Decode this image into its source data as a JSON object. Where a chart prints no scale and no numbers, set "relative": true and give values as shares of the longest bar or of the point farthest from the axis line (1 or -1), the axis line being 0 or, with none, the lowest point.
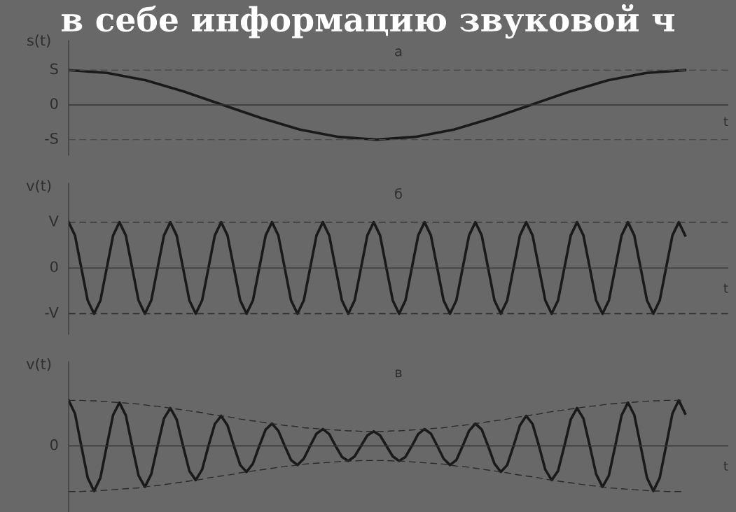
{
  "chart_data": [
    {
      "type": "line",
      "title": "а",
      "ylabel": "s(t)",
      "xlabel": "t",
      "annotations": [
        "в себе информацию звуковой ч"
      ],
      "relative": true,
      "categories": [
        null,
        null,
        null,
        null,
        null,
        null,
        null,
        null,
        null,
        null,
        null,
        null,
        null,
        null,
        null,
        null,
        null
      ],
      "series": [
        {
          "color": "#1a1a1a",
          "values": [
            1,
            0.92,
            0.71,
            0.38,
            0,
            -0.38,
            -0.71,
            -0.92,
            -1,
            -0.92,
            -0.71,
            -0.38,
            0,
            0.38,
            0.71,
            0.92,
            1
          ]
        }
      ],
      "ref_lines": [
        {
          "axis": "y",
          "value": 1,
          "label": "S",
          "line_style": "dashed",
          "color": "#4a4a4a"
        },
        {
          "axis": "y",
          "value": 0,
          "label": "0",
          "line_style": "solid",
          "color": "#333333"
        },
        {
          "axis": "y",
          "value": -1,
          "label": "-S",
          "line_style": "dashed",
          "color": "#4a4a4a"
        }
      ]
    },
    {
      "type": "line",
      "title": "б",
      "ylabel": "v(t)",
      "xlabel": "t",
      "relative": true,
      "categories": [
        null,
        null,
        null,
        null,
        null,
        null,
        null,
        null,
        null,
        null,
        null,
        null,
        null,
        null,
        null,
        null,
        null,
        null,
        null,
        null,
        null,
        null,
        null,
        null,
        null,
        null,
        null,
        null,
        null,
        null,
        null,
        null,
        null,
        null,
        null,
        null,
        null,
        null,
        null,
        null,
        null,
        null,
        null,
        null,
        null,
        null,
        null,
        null,
        null,
        null,
        null,
        null,
        null,
        null,
        null,
        null,
        null,
        null,
        null,
        null,
        null,
        null,
        null,
        null,
        null,
        null,
        null,
        null,
        null,
        null,
        null,
        null,
        null,
        null,
        null,
        null,
        null,
        null,
        null,
        null,
        null,
        null,
        null,
        null,
        null,
        null,
        null,
        null,
        null,
        null,
        null,
        null,
        null,
        null,
        null,
        null,
        null,
        null
      ],
      "series": [
        {
          "color": "#1a1a1a",
          "values": [
            1,
            0.71,
            0,
            -0.71,
            -1,
            -0.71,
            0,
            0.71,
            1,
            0.71,
            0,
            -0.71,
            -1,
            -0.71,
            0,
            0.71,
            1,
            0.71,
            0,
            -0.71,
            -1,
            -0.71,
            0,
            0.71,
            1,
            0.71,
            0,
            -0.71,
            -1,
            -0.71,
            0,
            0.71,
            1,
            0.71,
            0,
            -0.71,
            -1,
            -0.71,
            0,
            0.71,
            1,
            0.71,
            0,
            -0.71,
            -1,
            -0.71,
            0,
            0.71,
            1,
            0.71,
            0,
            -0.71,
            -1,
            -0.71,
            0,
            0.71,
            1,
            0.71,
            0,
            -0.71,
            -1,
            -0.71,
            0,
            0.71,
            1,
            0.71,
            0,
            -0.71,
            -1,
            -0.71,
            0,
            0.71,
            1,
            0.71,
            0,
            -0.71,
            -1,
            -0.71,
            0,
            0.71,
            1,
            0.71,
            0,
            -0.71,
            -1,
            -0.71,
            0,
            0.71,
            1,
            0.71,
            0,
            -0.71,
            -1,
            -0.71,
            0,
            0.71,
            1,
            0.71
          ]
        }
      ],
      "ref_lines": [
        {
          "axis": "y",
          "value": 1,
          "label": "V",
          "line_style": "dashed",
          "color": "#2a2a2a"
        },
        {
          "axis": "y",
          "value": 0,
          "label": "0",
          "line_style": "solid",
          "color": "#333333"
        },
        {
          "axis": "y",
          "value": -1,
          "label": "-V",
          "line_style": "dashed",
          "color": "#2a2a2a"
        }
      ]
    },
    {
      "type": "line",
      "title": "в",
      "ylabel": "v(t)",
      "xlabel": "t",
      "relative": true,
      "ref_lines": [
        {
          "axis": "y",
          "value": 0,
          "label": "0",
          "line_style": "solid",
          "color": "#333333"
        }
      ],
      "categories": [
        null,
        null,
        null,
        null,
        null,
        null,
        null,
        null,
        null,
        null,
        null,
        null,
        null,
        null,
        null,
        null,
        null,
        null,
        null,
        null,
        null,
        null,
        null,
        null,
        null,
        null,
        null,
        null,
        null,
        null,
        null,
        null,
        null,
        null,
        null,
        null,
        null,
        null,
        null,
        null,
        null,
        null,
        null,
        null,
        null,
        null,
        null,
        null,
        null,
        null,
        null,
        null,
        null,
        null,
        null,
        null,
        null,
        null,
        null,
        null,
        null,
        null,
        null,
        null,
        null,
        null,
        null,
        null,
        null,
        null,
        null,
        null,
        null,
        null,
        null,
        null,
        null,
        null,
        null,
        null,
        null,
        null,
        null,
        null,
        null,
        null,
        null,
        null,
        null,
        null,
        null,
        null,
        null,
        null,
        null,
        null,
        null,
        null
      ],
      "series": [
        {
          "color": "#1a1a1a",
          "values": [
            1,
            0.71,
            0,
            -0.7,
            -0.99,
            -0.7,
            0,
            0.68,
            0.95,
            0.67,
            0,
            -0.65,
            -0.9,
            -0.62,
            0,
            0.6,
            0.83,
            0.58,
            0,
            -0.55,
            -0.75,
            -0.52,
            0,
            0.48,
            0.66,
            0.45,
            0,
            -0.42,
            -0.57,
            -0.39,
            0,
            0.36,
            0.49,
            0.33,
            0,
            -0.31,
            -0.42,
            -0.28,
            0,
            0.27,
            0.37,
            0.26,
            0,
            -0.24,
            -0.33,
            -0.23,
            0,
            0.23,
            0.32,
            0.23,
            0,
            -0.23,
            -0.33,
            -0.24,
            0,
            0.26,
            0.37,
            0.27,
            0,
            -0.28,
            -0.42,
            -0.31,
            0,
            0.33,
            0.49,
            0.36,
            0,
            -0.39,
            -0.57,
            -0.42,
            0,
            0.45,
            0.66,
            0.48,
            0,
            -0.52,
            -0.75,
            -0.55,
            0,
            0.58,
            0.83,
            0.6,
            0,
            -0.62,
            -0.9,
            -0.65,
            0,
            0.67,
            0.95,
            0.68,
            0,
            -0.7,
            -0.99,
            -0.7,
            0,
            0.71,
            1,
            0.71
          ]
        },
        {
          "color": "#2a2a2a",
          "line_style": "dashed",
          "values": [
            1,
            1,
            1,
            0.99,
            0.99,
            0.98,
            0.97,
            0.96,
            0.95,
            0.94,
            0.93,
            0.92,
            0.9,
            0.88,
            0.87,
            0.85,
            0.83,
            0.81,
            0.79,
            0.77,
            0.75,
            0.73,
            0.7,
            0.68,
            0.66,
            0.64,
            0.62,
            0.59,
            0.57,
            0.55,
            0.53,
            0.51,
            0.49,
            0.47,
            0.45,
            0.44,
            0.42,
            0.4,
            0.39,
            0.38,
            0.37,
            0.36,
            0.35,
            0.34,
            0.33,
            0.33,
            0.32,
            0.32,
            0.32,
            0.32,
            0.32,
            0.33,
            0.33,
            0.34,
            0.35,
            0.36,
            0.37,
            0.38,
            0.39,
            0.4,
            0.42,
            0.44,
            0.45,
            0.47,
            0.49,
            0.51,
            0.53,
            0.55,
            0.57,
            0.59,
            0.62,
            0.64,
            0.66,
            0.68,
            0.7,
            0.73,
            0.75,
            0.77,
            0.79,
            0.81,
            0.83,
            0.85,
            0.87,
            0.88,
            0.9,
            0.92,
            0.93,
            0.94,
            0.95,
            0.96,
            0.97,
            0.98,
            0.99,
            0.99,
            1,
            1,
            1,
            1
          ]
        },
        {
          "color": "#2a2a2a",
          "line_style": "dashed",
          "values": [
            -1,
            -1,
            -1,
            -0.99,
            -0.99,
            -0.98,
            -0.97,
            -0.96,
            -0.95,
            -0.94,
            -0.93,
            -0.92,
            -0.9,
            -0.88,
            -0.87,
            -0.85,
            -0.83,
            -0.81,
            -0.79,
            -0.77,
            -0.75,
            -0.73,
            -0.7,
            -0.68,
            -0.66,
            -0.64,
            -0.62,
            -0.59,
            -0.57,
            -0.55,
            -0.53,
            -0.51,
            -0.49,
            -0.47,
            -0.45,
            -0.44,
            -0.42,
            -0.4,
            -0.39,
            -0.38,
            -0.37,
            -0.36,
            -0.35,
            -0.34,
            -0.33,
            -0.33,
            -0.32,
            -0.32,
            -0.32,
            -0.32,
            -0.32,
            -0.33,
            -0.33,
            -0.34,
            -0.35,
            -0.36,
            -0.37,
            -0.38,
            -0.39,
            -0.4,
            -0.42,
            -0.44,
            -0.45,
            -0.47,
            -0.49,
            -0.51,
            -0.53,
            -0.55,
            -0.57,
            -0.59,
            -0.62,
            -0.64,
            -0.66,
            -0.68,
            -0.7,
            -0.73,
            -0.75,
            -0.77,
            -0.79,
            -0.81,
            -0.83,
            -0.85,
            -0.87,
            -0.88,
            -0.9,
            -0.92,
            -0.93,
            -0.94,
            -0.95,
            -0.96,
            -0.97,
            -0.98,
            -0.99,
            -0.99,
            -1,
            -1,
            -1,
            -1
          ]
        }
      ]
    }
  ]
}
